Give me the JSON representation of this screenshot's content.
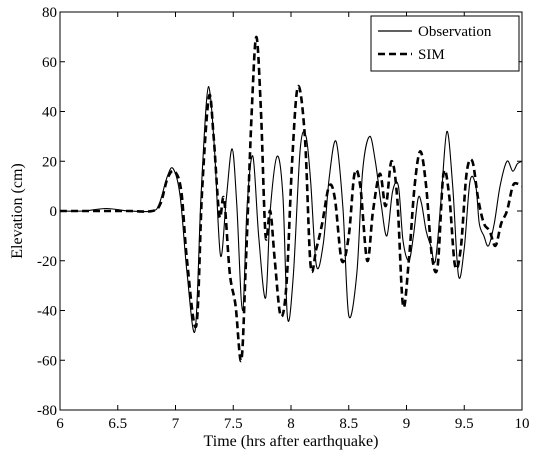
{
  "chart_data": {
    "type": "line",
    "title": "",
    "xlabel": "Time (hrs after earthquake)",
    "ylabel": "Elevation (cm)",
    "xlim": [
      6,
      10
    ],
    "ylim": [
      -80,
      80
    ],
    "xticks": [
      6,
      6.5,
      7,
      7.5,
      8,
      8.5,
      9,
      9.5,
      10
    ],
    "xtick_labels": [
      "6",
      "6.5",
      "7",
      "7.5",
      "8",
      "8.5",
      "9",
      "9.5",
      "10"
    ],
    "yticks": [
      -80,
      -60,
      -40,
      -20,
      0,
      20,
      40,
      60,
      80
    ],
    "ytick_labels": [
      "-80",
      "-60",
      "-40",
      "-20",
      "0",
      "20",
      "40",
      "60",
      "80"
    ],
    "grid": false,
    "legend_position": "top-right",
    "series": [
      {
        "name": "Observation",
        "style": "solid",
        "color": "#000000",
        "x": [
          6.0,
          6.2,
          6.4,
          6.6,
          6.8,
          6.86,
          6.93,
          6.98,
          7.04,
          7.1,
          7.17,
          7.22,
          7.27,
          7.3,
          7.34,
          7.39,
          7.44,
          7.49,
          7.53,
          7.58,
          7.62,
          7.67,
          7.72,
          7.78,
          7.82,
          7.88,
          7.93,
          7.97,
          8.02,
          8.08,
          8.13,
          8.17,
          8.22,
          8.28,
          8.33,
          8.39,
          8.45,
          8.5,
          8.57,
          8.62,
          8.68,
          8.73,
          8.78,
          8.83,
          8.88,
          8.93,
          8.97,
          9.02,
          9.06,
          9.1,
          9.13,
          9.17,
          9.21,
          9.25,
          9.3,
          9.35,
          9.4,
          9.45,
          9.5,
          9.55,
          9.6,
          9.63,
          9.67,
          9.71,
          9.76,
          9.81,
          9.87,
          9.92,
          9.96,
          10.0
        ],
        "y": [
          0,
          0,
          1,
          0,
          0,
          3,
          14,
          17,
          6,
          -25,
          -48,
          5,
          45,
          47,
          23,
          -18,
          5,
          25,
          3,
          -40,
          2,
          22,
          -10,
          -35,
          0,
          22,
          6,
          -43,
          -26,
          25,
          30,
          12,
          -22,
          -13,
          13,
          28,
          1,
          -42,
          -25,
          16,
          30,
          20,
          3,
          -10,
          8,
          10,
          -12,
          -20,
          -10,
          5,
          3,
          -8,
          -14,
          -20,
          5,
          32,
          10,
          -26,
          -15,
          12,
          10,
          -5,
          -10,
          -14,
          -5,
          10,
          20,
          16,
          19,
          20
        ]
      },
      {
        "name": "SIM",
        "style": "dashed",
        "color": "#000000",
        "x": [
          6.0,
          6.2,
          6.4,
          6.6,
          6.8,
          6.87,
          6.93,
          6.99,
          7.05,
          7.1,
          7.18,
          7.23,
          7.29,
          7.33,
          7.38,
          7.42,
          7.47,
          7.52,
          7.57,
          7.61,
          7.66,
          7.7,
          7.74,
          7.78,
          7.82,
          7.86,
          7.91,
          7.96,
          8.01,
          8.06,
          8.12,
          8.17,
          8.22,
          8.27,
          8.33,
          8.38,
          8.44,
          8.5,
          8.55,
          8.6,
          8.66,
          8.71,
          8.77,
          8.82,
          8.87,
          8.92,
          8.97,
          9.02,
          9.07,
          9.12,
          9.17,
          9.22,
          9.27,
          9.32,
          9.37,
          9.42,
          9.47,
          9.52,
          9.57,
          9.62,
          9.67,
          9.72,
          9.77,
          9.82,
          9.87,
          9.92,
          9.96,
          10.0
        ],
        "y": [
          0,
          0,
          0,
          0,
          0,
          3,
          13,
          16,
          8,
          -20,
          -46,
          8,
          46,
          30,
          -2,
          5,
          -25,
          -38,
          -60,
          -20,
          40,
          70,
          40,
          -10,
          0,
          -20,
          -42,
          -30,
          20,
          50,
          30,
          -22,
          -15,
          -5,
          10,
          5,
          -20,
          -10,
          15,
          10,
          -20,
          0,
          15,
          2,
          20,
          5,
          -38,
          -20,
          10,
          24,
          10,
          -18,
          -22,
          15,
          6,
          -22,
          -15,
          15,
          20,
          5,
          -5,
          -8,
          -14,
          -5,
          0,
          10,
          11,
          10
        ]
      }
    ]
  }
}
